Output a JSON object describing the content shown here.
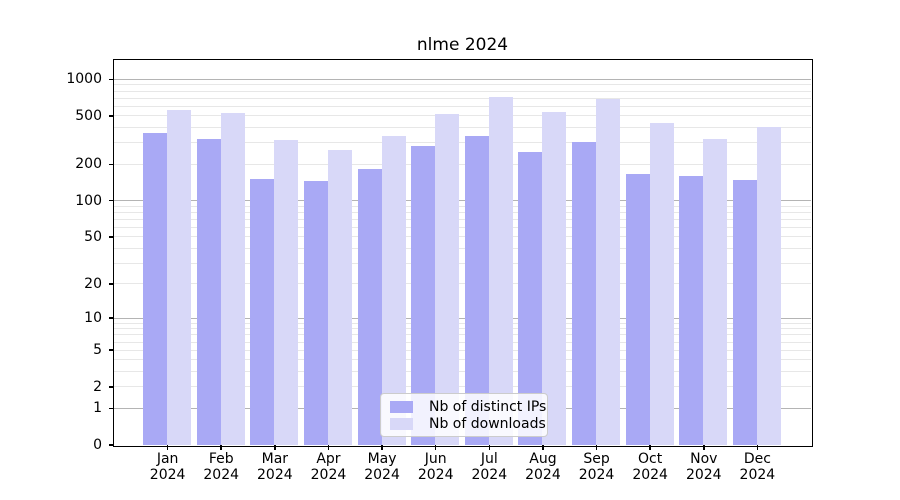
{
  "chart_data": {
    "type": "bar",
    "title": "nlme 2024",
    "categories": [
      "Jan",
      "Feb",
      "Mar",
      "Apr",
      "May",
      "Jun",
      "Jul",
      "Aug",
      "Sep",
      "Oct",
      "Nov",
      "Dec"
    ],
    "year_label": "2024",
    "series": [
      {
        "name": "Nb of distinct IPs",
        "color": "#a9a9f5",
        "values": [
          360,
          321,
          150,
          144,
          183,
          283,
          337,
          249,
          303,
          166,
          160,
          146
        ]
      },
      {
        "name": "Nb of downloads",
        "color": "#d8d8f8",
        "values": [
          553,
          521,
          317,
          262,
          338,
          512,
          711,
          535,
          686,
          435,
          321,
          400
        ]
      }
    ],
    "y_axis": {
      "scale": "log1p",
      "ticks": [
        1000,
        500,
        200,
        100,
        50,
        20,
        10,
        5,
        2,
        1,
        0
      ],
      "ylim": [
        0,
        1441
      ],
      "major_grid_values": [
        1,
        10,
        100,
        1000
      ]
    },
    "grid": {
      "major_color": "#b4b4b4",
      "minor_color": "#e7e7e7"
    },
    "legend_position": "bottom-center"
  }
}
